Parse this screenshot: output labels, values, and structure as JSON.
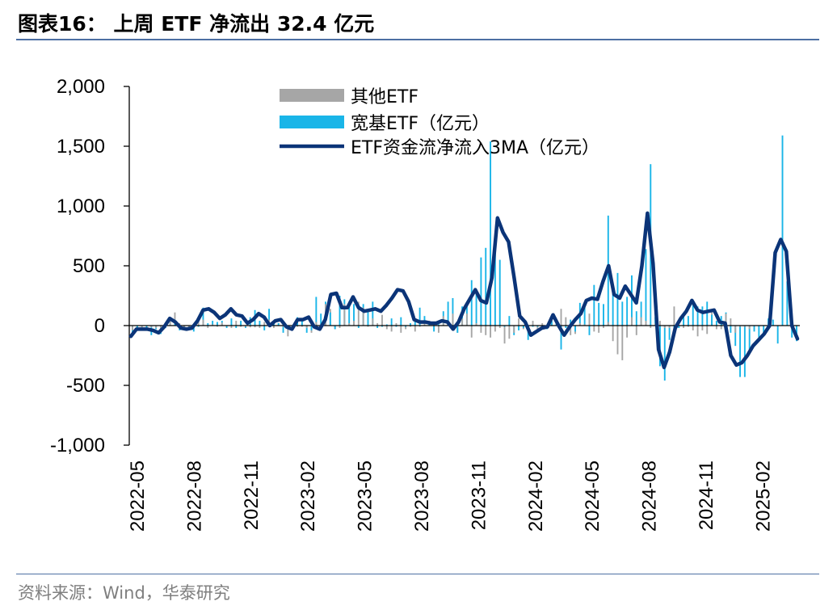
{
  "header": {
    "title": "图表16： 上周 ETF 净流出 32.4 亿元"
  },
  "footer": {
    "source": "资料来源：Wind，华泰研究"
  },
  "colors": {
    "other_etf": "#a6a6a6",
    "broad_etf": "#19b5e8",
    "ma_line": "#0b3478",
    "rule": "#4d6fa3"
  },
  "chart_data": {
    "type": "bar",
    "yticks": [
      "2,000",
      "1,500",
      "1,000",
      "500",
      "0",
      "-500",
      "-1,000"
    ],
    "ylim": [
      -1000,
      2000
    ],
    "xticks": [
      "2022-05",
      "2022-08",
      "2022-11",
      "2023-02",
      "2023-05",
      "2023-08",
      "2023-11",
      "2024-02",
      "2024-05",
      "2024-08",
      "2024-11",
      "2025-02"
    ],
    "legend": [
      "其他ETF",
      "宽基ETF（亿元）",
      "ETF资金流净流入3MA（亿元）"
    ],
    "series": [
      {
        "name": "其他ETF",
        "type": "bar",
        "values": [
          -40,
          -25,
          -20,
          -30,
          -15,
          -20,
          -25,
          -10,
          40,
          110,
          20,
          -15,
          -10,
          10,
          30,
          50,
          -20,
          10,
          -10,
          25,
          -5,
          -20,
          40,
          -10,
          -10,
          -15,
          -15,
          -20,
          30,
          50,
          -20,
          20,
          -10,
          -90,
          -30,
          -10,
          -10,
          -20,
          -60,
          30,
          -10,
          180,
          140,
          -30,
          -20,
          180,
          20,
          40,
          200,
          150,
          -10,
          60,
          20,
          90,
          -30,
          -50,
          20,
          -60,
          -30,
          -10,
          -50,
          -10,
          40,
          40,
          30,
          -60,
          80,
          20,
          100,
          -60,
          60,
          100,
          -100,
          20,
          -60,
          -80,
          -100,
          -50,
          -20,
          -150,
          -110,
          -60,
          60,
          -30,
          -20,
          40,
          -40,
          20,
          -20,
          40,
          40,
          140,
          70,
          -80,
          -70,
          20,
          10,
          100,
          -50,
          -60,
          -20,
          30,
          -130,
          -240,
          -290,
          -100,
          70,
          -80,
          70,
          40,
          -20,
          20,
          40,
          -20,
          -20,
          160,
          -20,
          -20,
          -10,
          -40,
          -90,
          -40,
          -70,
          110,
          -30,
          -30,
          100,
          60,
          -60,
          -10,
          -10,
          -30
        ],
        "note": "values estimated from gridlines"
      },
      {
        "name": "宽基ETF（亿元）",
        "type": "bar",
        "values": [
          -60,
          -20,
          -30,
          -20,
          -80,
          -30,
          -70,
          -20,
          60,
          50,
          -40,
          -30,
          -20,
          -50,
          -10,
          150,
          20,
          40,
          30,
          40,
          -20,
          60,
          -20,
          40,
          -20,
          70,
          130,
          40,
          -40,
          140,
          40,
          20,
          -60,
          -20,
          -20,
          70,
          60,
          -60,
          -40,
          240,
          100,
          200,
          110,
          -30,
          250,
          220,
          200,
          180,
          -20,
          180,
          140,
          200,
          -20,
          -10,
          10,
          60,
          -10,
          70,
          -10,
          20,
          50,
          150,
          80,
          20,
          -50,
          10,
          120,
          200,
          230,
          -60,
          160,
          180,
          380,
          280,
          570,
          650,
          1540,
          690,
          550,
          -10,
          80,
          -80,
          -40,
          -20,
          -120,
          -10,
          -10,
          -20,
          -30,
          40,
          40,
          -200,
          -20,
          50,
          -50,
          190,
          200,
          -80,
          340,
          190,
          180,
          920,
          280,
          440,
          200,
          240,
          420,
          120,
          200,
          640,
          1350,
          70,
          -340,
          -460,
          -120,
          -40,
          -20,
          100,
          80,
          210,
          160,
          160,
          200,
          90,
          40,
          80,
          110,
          -60,
          -170,
          -430,
          -430,
          -220,
          -50,
          -100,
          -90,
          60,
          50,
          -150,
          1590,
          370,
          -100,
          -130
        ],
        "note": "values estimated from gridlines"
      },
      {
        "name": "ETF资金流净流入3MA（亿元）",
        "type": "line",
        "values": [
          -90,
          -30,
          -30,
          -30,
          -40,
          -60,
          -10,
          60,
          30,
          -20,
          -30,
          -20,
          40,
          130,
          140,
          110,
          60,
          90,
          140,
          90,
          80,
          20,
          50,
          100,
          70,
          0,
          40,
          50,
          -10,
          -30,
          50,
          50,
          70,
          -10,
          -30,
          50,
          260,
          270,
          150,
          150,
          240,
          150,
          120,
          130,
          140,
          120,
          170,
          230,
          300,
          290,
          200,
          50,
          30,
          30,
          20,
          20,
          40,
          30,
          -30,
          30,
          140,
          220,
          300,
          210,
          190,
          400,
          900,
          780,
          700,
          400,
          80,
          30,
          -80,
          -50,
          -20,
          -10,
          90,
          0,
          -80,
          -10,
          50,
          100,
          210,
          230,
          220,
          370,
          500,
          260,
          230,
          330,
          260,
          190,
          500,
          940,
          520,
          -200,
          -350,
          -220,
          -20,
          60,
          120,
          210,
          130,
          110,
          120,
          130,
          30,
          20,
          -250,
          -330,
          -310,
          -250,
          -170,
          -120,
          -70,
          0,
          610,
          720,
          620,
          0,
          -110
        ],
        "note": "values estimated from gridlines"
      }
    ]
  }
}
